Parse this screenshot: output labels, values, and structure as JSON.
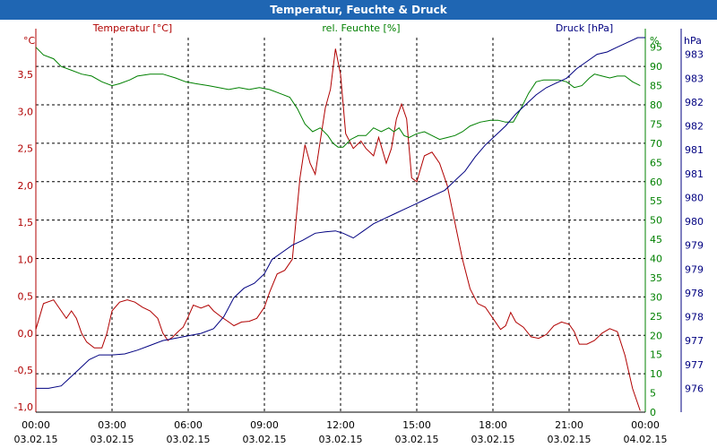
{
  "window": {
    "title": "Temperatur, Feuchte & Druck"
  },
  "chart_data": {
    "type": "line",
    "title": "Temperatur, Feuchte & Druck",
    "grid": true,
    "x_ticks": [
      {
        "time": "00:00",
        "date": "03.02.15"
      },
      {
        "time": "03:00",
        "date": "03.02.15"
      },
      {
        "time": "06:00",
        "date": "03.02.15"
      },
      {
        "time": "09:00",
        "date": "03.02.15"
      },
      {
        "time": "12:00",
        "date": "03.02.15"
      },
      {
        "time": "15:00",
        "date": "03.02.15"
      },
      {
        "time": "18:00",
        "date": "03.02.15"
      },
      {
        "time": "21:00",
        "date": "03.02.15"
      },
      {
        "time": "00:00",
        "date": "04.02.15"
      }
    ],
    "x_hours_range": [
      0,
      24
    ],
    "axes": {
      "temperature": {
        "label": "Temperatur [°C]",
        "unit": "°C",
        "color": "#b00000",
        "range": [
          -1.07,
          4.0
        ],
        "ticks": [
          "-1,0",
          "-0,5",
          "0,0",
          "0,5",
          "1,0",
          "1,5",
          "2,0",
          "2,5",
          "3,0",
          "3,5"
        ],
        "tick_values": [
          -1.0,
          -0.5,
          0.0,
          0.5,
          1.0,
          1.5,
          2.0,
          2.5,
          3.0,
          3.5
        ]
      },
      "humidity": {
        "label": "rel. Feuchte [%]",
        "unit": "%",
        "color": "#008000",
        "range": [
          0,
          97.5
        ],
        "ticks": [
          "0",
          "5",
          "10",
          "15",
          "20",
          "25",
          "30",
          "35",
          "40",
          "45",
          "50",
          "55",
          "60",
          "65",
          "70",
          "75",
          "80",
          "85",
          "90",
          "95"
        ],
        "tick_values": [
          0,
          5,
          10,
          15,
          20,
          25,
          30,
          35,
          40,
          45,
          50,
          55,
          60,
          65,
          70,
          75,
          80,
          85,
          90,
          95
        ]
      },
      "pressure": {
        "label": "Druck [hPa]",
        "unit": "hPa",
        "color": "#000080",
        "range": [
          975.5,
          983.35
        ],
        "ticks": [
          "976",
          "977",
          "977",
          "978",
          "978",
          "979",
          "979",
          "980",
          "980",
          "981",
          "981",
          "982",
          "982",
          "983",
          "983"
        ],
        "tick_values": [
          976.0,
          976.5,
          977.0,
          977.5,
          978.0,
          978.5,
          979.0,
          979.5,
          980.0,
          980.5,
          981.0,
          981.5,
          982.0,
          982.5,
          983.0
        ]
      }
    },
    "series": [
      {
        "name": "Temperatur [°C]",
        "axis": "temperature",
        "color": "#b00000",
        "points": [
          [
            0,
            0.05
          ],
          [
            0.3,
            0.4
          ],
          [
            0.7,
            0.45
          ],
          [
            1.0,
            0.3
          ],
          [
            1.2,
            0.2
          ],
          [
            1.4,
            0.3
          ],
          [
            1.6,
            0.2
          ],
          [
            1.8,
            0.0
          ],
          [
            2.0,
            -0.12
          ],
          [
            2.3,
            -0.2
          ],
          [
            2.6,
            -0.2
          ],
          [
            2.8,
            0.0
          ],
          [
            3.0,
            0.3
          ],
          [
            3.3,
            0.42
          ],
          [
            3.6,
            0.45
          ],
          [
            3.9,
            0.42
          ],
          [
            4.2,
            0.35
          ],
          [
            4.5,
            0.3
          ],
          [
            4.8,
            0.2
          ],
          [
            5.0,
            0.0
          ],
          [
            5.2,
            -0.1
          ],
          [
            5.4,
            -0.05
          ],
          [
            5.6,
            0.02
          ],
          [
            5.8,
            0.08
          ],
          [
            6.0,
            0.22
          ],
          [
            6.2,
            0.38
          ],
          [
            6.5,
            0.34
          ],
          [
            6.8,
            0.38
          ],
          [
            7.0,
            0.3
          ],
          [
            7.3,
            0.22
          ],
          [
            7.6,
            0.15
          ],
          [
            7.8,
            0.1
          ],
          [
            8.1,
            0.15
          ],
          [
            8.4,
            0.16
          ],
          [
            8.7,
            0.2
          ],
          [
            9.0,
            0.35
          ],
          [
            9.2,
            0.55
          ],
          [
            9.5,
            0.8
          ],
          [
            9.8,
            0.85
          ],
          [
            10.1,
            1.0
          ],
          [
            10.4,
            2.1
          ],
          [
            10.6,
            2.55
          ],
          [
            10.8,
            2.3
          ],
          [
            11.0,
            2.15
          ],
          [
            11.2,
            2.6
          ],
          [
            11.4,
            3.05
          ],
          [
            11.6,
            3.3
          ],
          [
            11.8,
            3.85
          ],
          [
            12.0,
            3.5
          ],
          [
            12.2,
            2.7
          ],
          [
            12.5,
            2.5
          ],
          [
            12.8,
            2.6
          ],
          [
            13.0,
            2.5
          ],
          [
            13.3,
            2.4
          ],
          [
            13.5,
            2.65
          ],
          [
            13.8,
            2.3
          ],
          [
            14.0,
            2.5
          ],
          [
            14.2,
            2.9
          ],
          [
            14.4,
            3.1
          ],
          [
            14.6,
            2.9
          ],
          [
            14.8,
            2.1
          ],
          [
            15.0,
            2.05
          ],
          [
            15.3,
            2.4
          ],
          [
            15.6,
            2.45
          ],
          [
            15.9,
            2.3
          ],
          [
            16.2,
            2.0
          ],
          [
            16.5,
            1.5
          ],
          [
            16.8,
            1.0
          ],
          [
            17.1,
            0.6
          ],
          [
            17.4,
            0.4
          ],
          [
            17.7,
            0.35
          ],
          [
            18.0,
            0.2
          ],
          [
            18.3,
            0.05
          ],
          [
            18.5,
            0.1
          ],
          [
            18.7,
            0.28
          ],
          [
            18.9,
            0.15
          ],
          [
            19.2,
            0.08
          ],
          [
            19.5,
            -0.05
          ],
          [
            19.8,
            -0.07
          ],
          [
            20.1,
            -0.02
          ],
          [
            20.4,
            0.1
          ],
          [
            20.7,
            0.15
          ],
          [
            21.0,
            0.12
          ],
          [
            21.2,
            0.02
          ],
          [
            21.4,
            -0.15
          ],
          [
            21.7,
            -0.15
          ],
          [
            22.0,
            -0.1
          ],
          [
            22.3,
            0.0
          ],
          [
            22.6,
            0.06
          ],
          [
            22.9,
            0.02
          ],
          [
            23.2,
            -0.3
          ],
          [
            23.5,
            -0.75
          ],
          [
            23.8,
            -1.05
          ]
        ]
      },
      {
        "name": "rel. Feuchte [%]",
        "axis": "humidity",
        "color": "#008000",
        "points": [
          [
            0,
            95
          ],
          [
            0.3,
            93
          ],
          [
            0.7,
            92
          ],
          [
            1.0,
            90
          ],
          [
            1.4,
            89
          ],
          [
            1.8,
            88
          ],
          [
            2.2,
            87.5
          ],
          [
            2.6,
            86
          ],
          [
            3.0,
            85
          ],
          [
            3.3,
            85.5
          ],
          [
            3.7,
            86.5
          ],
          [
            4.0,
            87.5
          ],
          [
            4.5,
            88
          ],
          [
            5.0,
            88
          ],
          [
            5.5,
            87
          ],
          [
            5.9,
            86
          ],
          [
            6.3,
            85.5
          ],
          [
            6.8,
            85
          ],
          [
            7.2,
            84.5
          ],
          [
            7.6,
            84
          ],
          [
            8.0,
            84.5
          ],
          [
            8.4,
            84
          ],
          [
            8.8,
            84.5
          ],
          [
            9.2,
            84
          ],
          [
            9.6,
            83
          ],
          [
            10.0,
            82
          ],
          [
            10.3,
            79
          ],
          [
            10.6,
            75
          ],
          [
            10.9,
            73
          ],
          [
            11.2,
            74
          ],
          [
            11.5,
            72
          ],
          [
            11.7,
            70
          ],
          [
            11.9,
            69
          ],
          [
            12.1,
            69
          ],
          [
            12.4,
            71
          ],
          [
            12.7,
            72
          ],
          [
            13.0,
            72
          ],
          [
            13.3,
            74
          ],
          [
            13.6,
            73
          ],
          [
            13.9,
            74
          ],
          [
            14.1,
            73
          ],
          [
            14.3,
            74
          ],
          [
            14.5,
            72
          ],
          [
            14.7,
            71.5
          ],
          [
            15.0,
            72.5
          ],
          [
            15.3,
            73
          ],
          [
            15.6,
            72
          ],
          [
            15.9,
            71
          ],
          [
            16.2,
            71.5
          ],
          [
            16.5,
            72
          ],
          [
            16.8,
            73
          ],
          [
            17.1,
            74.5
          ],
          [
            17.5,
            75.5
          ],
          [
            17.9,
            76
          ],
          [
            18.2,
            76
          ],
          [
            18.5,
            75.5
          ],
          [
            18.8,
            75.5
          ],
          [
            19.1,
            79
          ],
          [
            19.4,
            83
          ],
          [
            19.7,
            86
          ],
          [
            20.0,
            86.5
          ],
          [
            20.3,
            86.5
          ],
          [
            20.6,
            86.5
          ],
          [
            20.9,
            86
          ],
          [
            21.2,
            84.5
          ],
          [
            21.5,
            85
          ],
          [
            21.8,
            87
          ],
          [
            22.0,
            88
          ],
          [
            22.3,
            87.5
          ],
          [
            22.6,
            87
          ],
          [
            22.9,
            87.5
          ],
          [
            23.2,
            87.5
          ],
          [
            23.5,
            86
          ],
          [
            23.8,
            85
          ]
        ]
      },
      {
        "name": "Druck [hPa]",
        "axis": "pressure",
        "color": "#000080",
        "points": [
          [
            0,
            976.0
          ],
          [
            0.5,
            976.0
          ],
          [
            1.0,
            976.05
          ],
          [
            1.3,
            976.2
          ],
          [
            1.7,
            976.4
          ],
          [
            2.1,
            976.6
          ],
          [
            2.5,
            976.7
          ],
          [
            3.0,
            976.7
          ],
          [
            3.5,
            976.72
          ],
          [
            4.0,
            976.8
          ],
          [
            4.5,
            976.9
          ],
          [
            5.0,
            977.0
          ],
          [
            5.5,
            977.05
          ],
          [
            6.0,
            977.1
          ],
          [
            6.5,
            977.15
          ],
          [
            7.0,
            977.25
          ],
          [
            7.4,
            977.5
          ],
          [
            7.8,
            977.9
          ],
          [
            8.2,
            978.1
          ],
          [
            8.6,
            978.2
          ],
          [
            9.0,
            978.4
          ],
          [
            9.3,
            978.7
          ],
          [
            9.7,
            978.85
          ],
          [
            10.1,
            979.0
          ],
          [
            10.5,
            979.1
          ],
          [
            11.0,
            979.25
          ],
          [
            11.4,
            979.28
          ],
          [
            11.8,
            979.3
          ],
          [
            12.1,
            979.25
          ],
          [
            12.5,
            979.15
          ],
          [
            12.9,
            979.3
          ],
          [
            13.3,
            979.45
          ],
          [
            13.7,
            979.55
          ],
          [
            14.1,
            979.65
          ],
          [
            14.5,
            979.75
          ],
          [
            14.9,
            979.85
          ],
          [
            15.3,
            979.95
          ],
          [
            15.7,
            980.05
          ],
          [
            16.1,
            980.15
          ],
          [
            16.5,
            980.35
          ],
          [
            16.9,
            980.55
          ],
          [
            17.3,
            980.85
          ],
          [
            17.7,
            981.1
          ],
          [
            18.1,
            981.3
          ],
          [
            18.5,
            981.5
          ],
          [
            18.9,
            981.75
          ],
          [
            19.3,
            981.95
          ],
          [
            19.7,
            982.15
          ],
          [
            20.1,
            982.3
          ],
          [
            20.5,
            982.4
          ],
          [
            20.9,
            982.5
          ],
          [
            21.3,
            982.7
          ],
          [
            21.7,
            982.85
          ],
          [
            22.1,
            983.0
          ],
          [
            22.5,
            983.05
          ],
          [
            22.9,
            983.15
          ],
          [
            23.3,
            983.25
          ],
          [
            23.7,
            983.35
          ],
          [
            24.0,
            983.35
          ]
        ]
      }
    ]
  }
}
